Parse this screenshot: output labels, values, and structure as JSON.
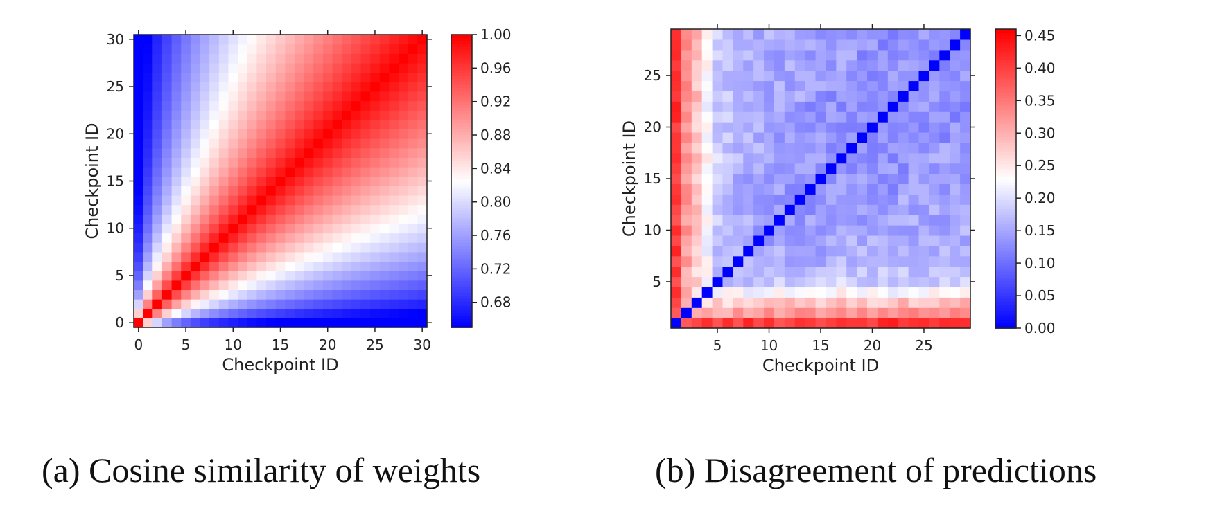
{
  "chart_data": [
    {
      "type": "heatmap",
      "caption_tag": "(a)",
      "caption": "Cosine similarity of weights",
      "xlabel": "Checkpoint ID",
      "ylabel": "Checkpoint ID",
      "x_ticks": [
        "0",
        "5",
        "10",
        "15",
        "20",
        "25",
        "30"
      ],
      "y_ticks": [
        "0",
        "5",
        "10",
        "15",
        "20",
        "25",
        "30"
      ],
      "xlim": [
        0,
        30
      ],
      "ylim": [
        0,
        30
      ],
      "n_cells": 31,
      "colorbar": {
        "min": 0.65,
        "max": 1.0,
        "ticks": [
          "0.68",
          "0.72",
          "0.76",
          "0.80",
          "0.84",
          "0.88",
          "0.92",
          "0.96",
          "1.00"
        ],
        "colormap": "bwr",
        "low_color": "#0000ff",
        "mid_color": "#ffffff",
        "high_color": "#ff0000"
      },
      "description_values": {
        "diagonal": 1.0,
        "row0_far": 0.65,
        "near_diagonal_high": 0.98
      },
      "grid": false
    },
    {
      "type": "heatmap",
      "caption_tag": "(b)",
      "caption": "Disagreement of predictions",
      "xlabel": "Checkpoint ID",
      "ylabel": "Checkpoint ID",
      "x_ticks": [
        "5",
        "10",
        "15",
        "20",
        "25"
      ],
      "y_ticks": [
        "5",
        "10",
        "15",
        "20",
        "25"
      ],
      "xlim": [
        1,
        29
      ],
      "ylim": [
        1,
        29
      ],
      "n_cells": 29,
      "colorbar": {
        "min": 0.0,
        "max": 0.46,
        "ticks": [
          "0.00",
          "0.05",
          "0.10",
          "0.15",
          "0.20",
          "0.25",
          "0.30",
          "0.35",
          "0.40",
          "0.45"
        ],
        "colormap": "bwr",
        "low_color": "#0000ff",
        "mid_color": "#ffffff",
        "high_color": "#ff0000"
      },
      "description_values": {
        "diagonal": 0.0,
        "checkpoint1_row": 0.42,
        "typical_offdiag": 0.15
      },
      "grid": false
    }
  ]
}
